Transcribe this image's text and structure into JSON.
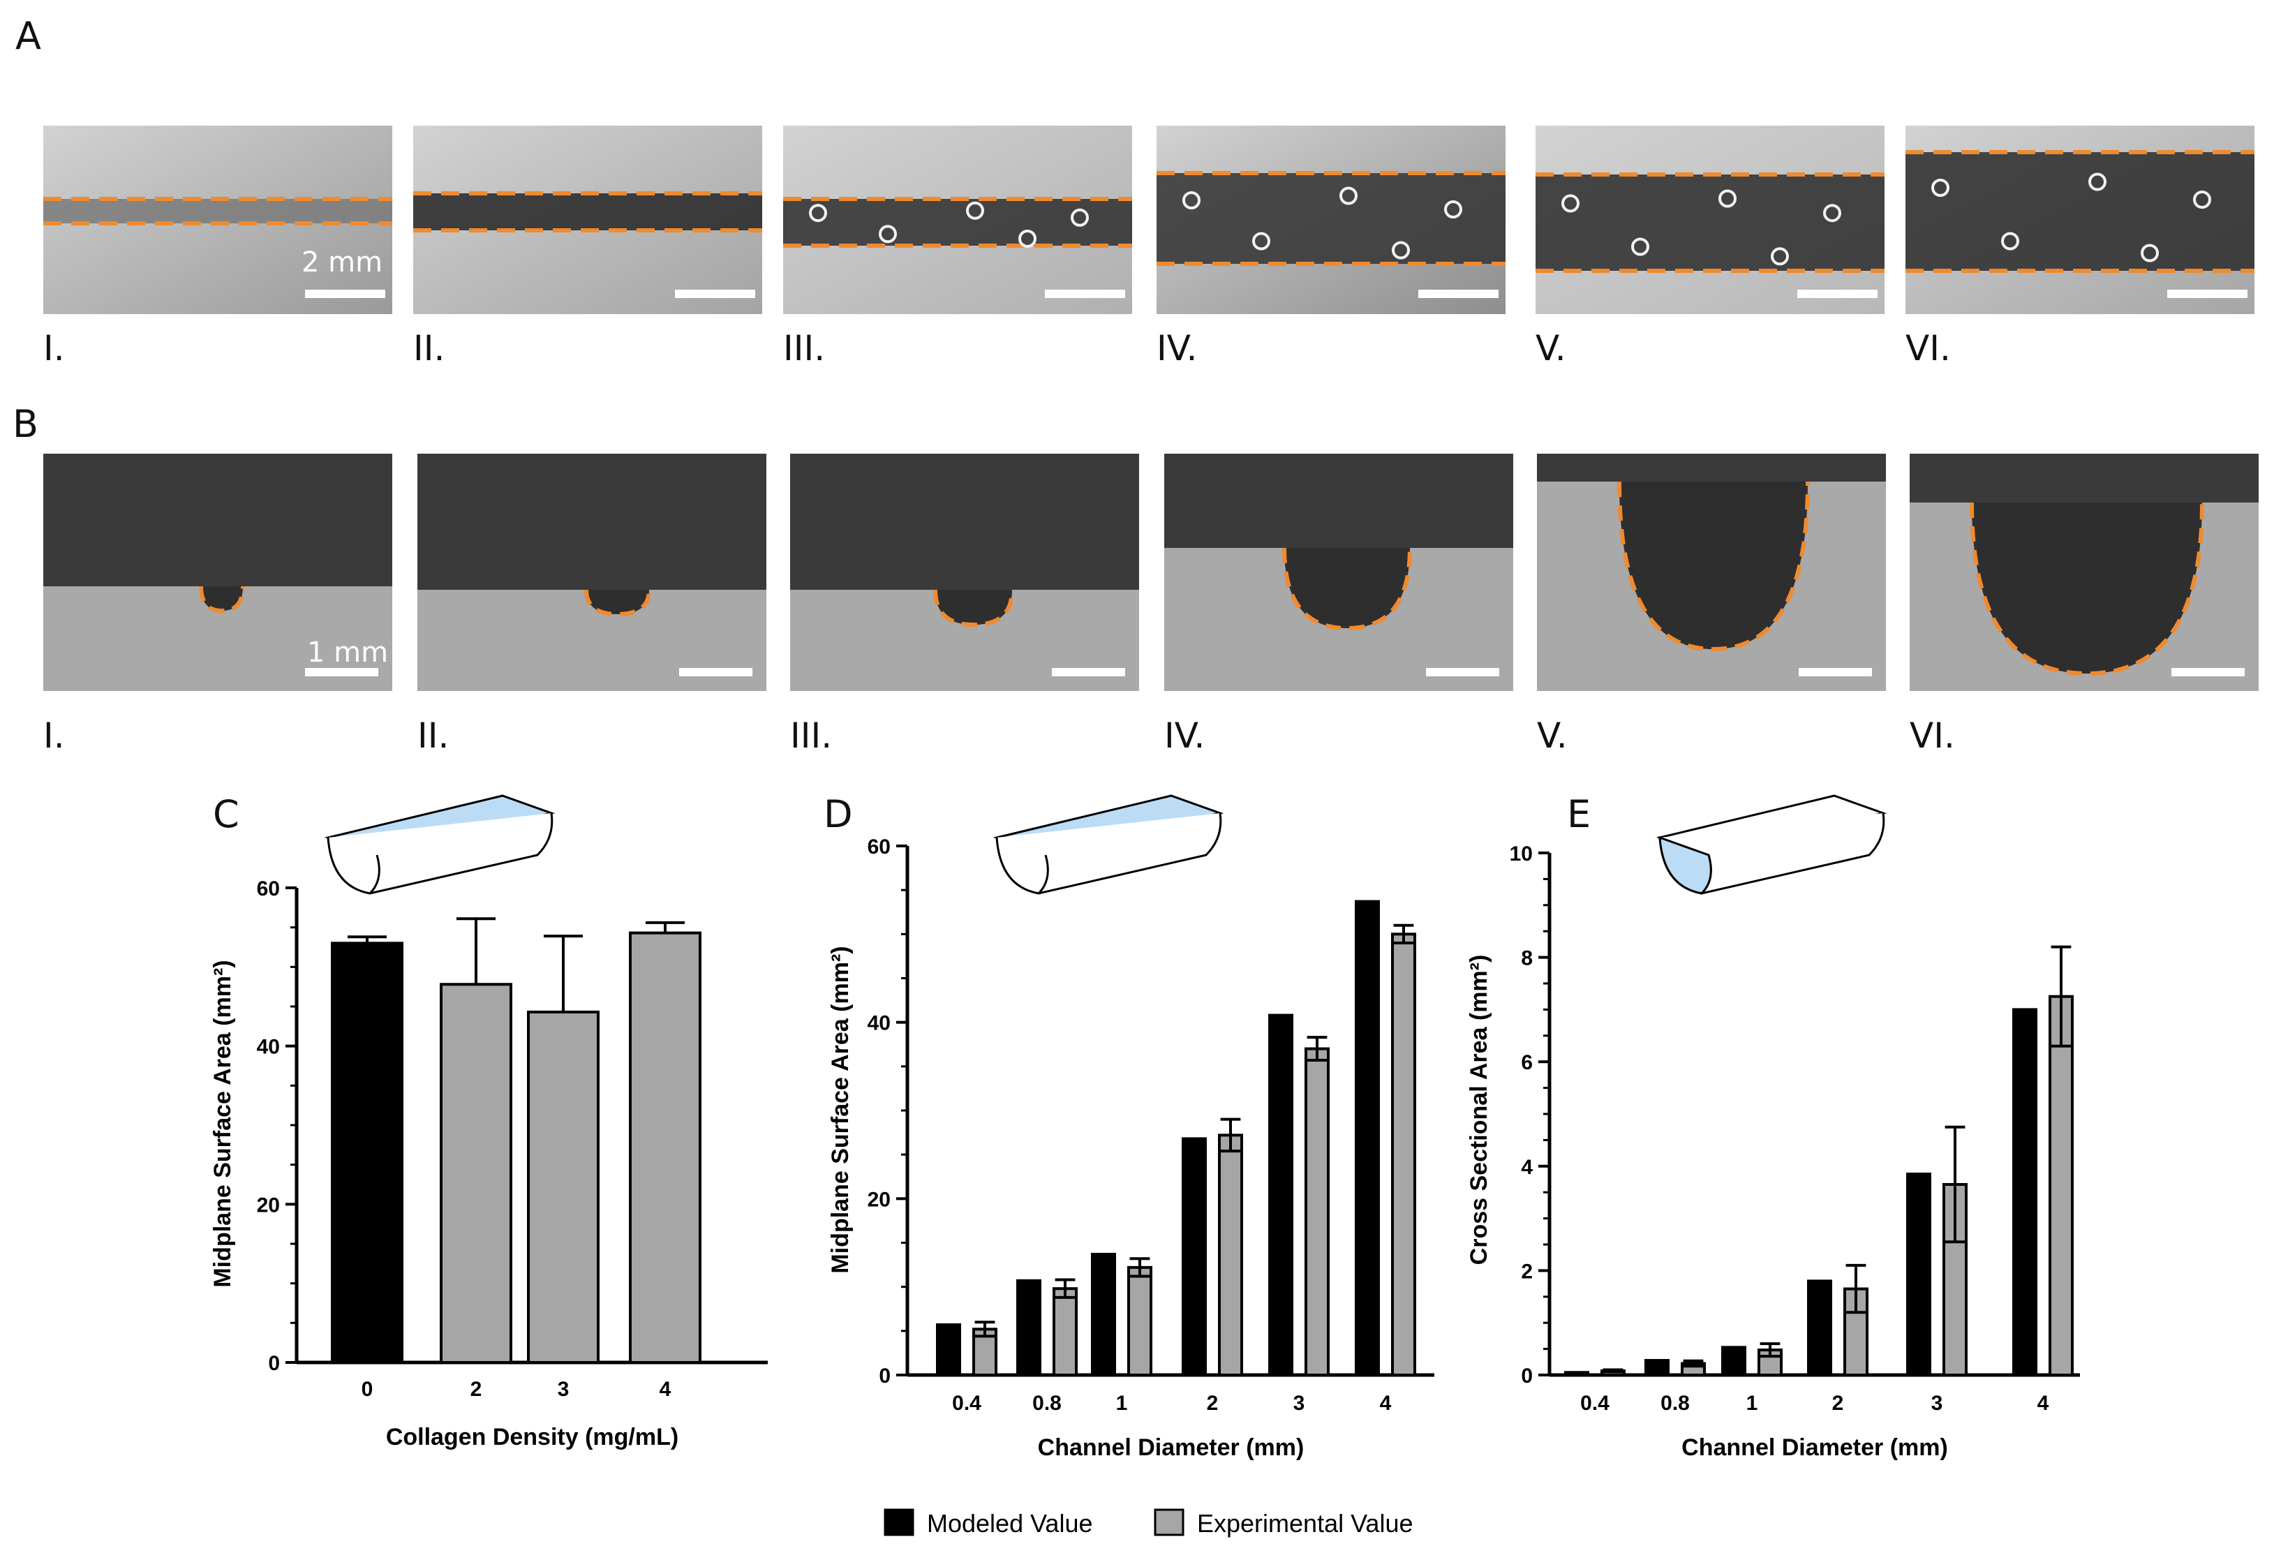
{
  "panels": {
    "A": "A",
    "B": "B",
    "C": "C",
    "D": "D",
    "E": "E"
  },
  "row_a": {
    "scale_label": "2 mm",
    "labels": [
      "I.",
      "II.",
      "III.",
      "IV.",
      "V.",
      "VI."
    ]
  },
  "row_b": {
    "scale_label": "1 mm",
    "labels": [
      "I.",
      "II.",
      "III.",
      "IV.",
      "V.",
      "VI."
    ]
  },
  "colors": {
    "modeled": "#000000",
    "experimental": "#a6a6a6",
    "trace": "#f08a2e",
    "schematic_fill": "#bcdcf5"
  },
  "legend": {
    "modeled": "Modeled Value",
    "experimental": "Experimental Value"
  },
  "chart_data": [
    {
      "id": "C",
      "type": "bar",
      "categories": [
        "0",
        "2",
        "3",
        "4"
      ],
      "series": [
        {
          "name": "Modeled Value",
          "values": [
            53,
            null,
            null,
            null
          ],
          "errors": [
            0.8,
            null,
            null,
            null
          ]
        },
        {
          "name": "Experimental Value",
          "values": [
            null,
            47.8,
            44.3,
            54.3
          ],
          "errors": [
            null,
            8.3,
            9.6,
            1.3
          ]
        }
      ],
      "xlabel": "Collagen Density (mg/mL)",
      "ylabel": "Midplane Surface Area (mm²)",
      "ylim": [
        0,
        60
      ],
      "yticks": [
        0,
        20,
        40,
        60
      ]
    },
    {
      "id": "D",
      "type": "bar",
      "categories": [
        "0.4",
        "0.8",
        "1",
        "2",
        "3",
        "4"
      ],
      "series": [
        {
          "name": "Modeled Value",
          "values": [
            5.7,
            10.7,
            13.7,
            26.8,
            40.8,
            53.7
          ],
          "errors": null
        },
        {
          "name": "Experimental Value",
          "values": [
            5.2,
            9.8,
            12.2,
            27.2,
            37,
            50
          ],
          "errors": [
            0.8,
            1,
            1,
            1.8,
            1.3,
            1
          ]
        }
      ],
      "xlabel": "Channel Diameter (mm)",
      "ylabel": "Midplane Surface Area (mm²)",
      "ylim": [
        0,
        60
      ],
      "yticks": [
        0,
        20,
        40,
        60
      ]
    },
    {
      "id": "E",
      "type": "bar",
      "categories": [
        "0.4",
        "0.8",
        "1",
        "2",
        "3",
        "4"
      ],
      "series": [
        {
          "name": "Modeled Value",
          "values": [
            0.05,
            0.28,
            0.53,
            1.8,
            3.85,
            7
          ],
          "errors": null
        },
        {
          "name": "Experimental Value",
          "values": [
            0.08,
            0.22,
            0.48,
            1.65,
            3.65,
            7.25
          ],
          "errors": [
            0.02,
            0.05,
            0.12,
            0.45,
            1.1,
            0.95
          ]
        }
      ],
      "xlabel": "Channel Diameter (mm)",
      "ylabel": "Cross Sectional Area (mm²)",
      "ylim": [
        0,
        10
      ],
      "yticks": [
        0,
        2,
        4,
        6,
        8,
        10
      ]
    }
  ]
}
